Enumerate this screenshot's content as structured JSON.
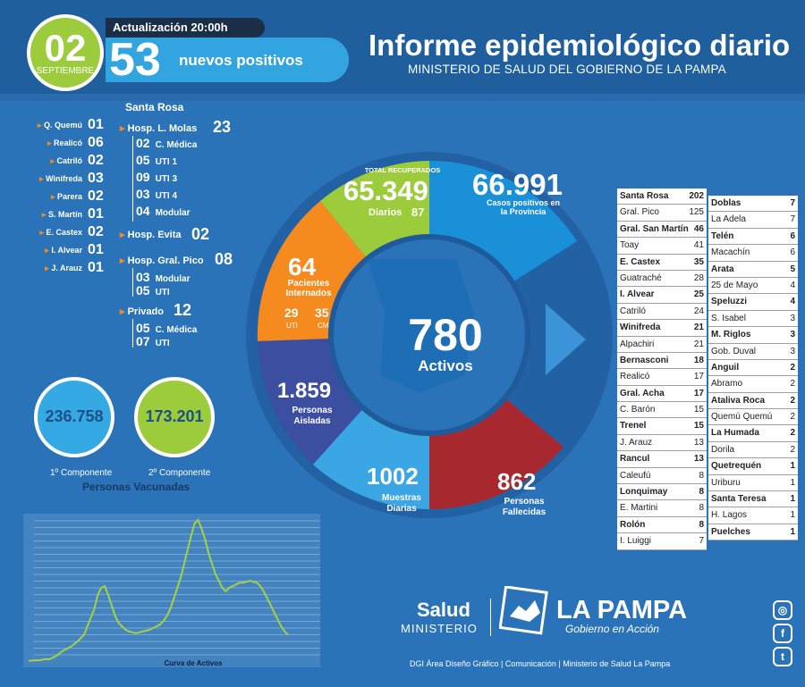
{
  "header": {
    "day": "02",
    "month": "SEPTIEMBRE",
    "update": "Actualización 20:00h",
    "new_positives": "53",
    "new_positives_label": "nuevos positivos",
    "title": "Informe epidemiológico diario",
    "subtitle": "MINISTERIO DE SALUD DEL GOBIERNO DE LA PAMPA"
  },
  "localities": [
    {
      "name": "Q. Quemú",
      "value": "01"
    },
    {
      "name": "Realicó",
      "value": "06"
    },
    {
      "name": "Catriló",
      "value": "02"
    },
    {
      "name": "Winifreda",
      "value": "03"
    },
    {
      "name": "Parera",
      "value": "02"
    },
    {
      "name": "S. Martín",
      "value": "01"
    },
    {
      "name": "E. Castex",
      "value": "02"
    },
    {
      "name": "I. Alvear",
      "value": "01"
    },
    {
      "name": "J. Arauz",
      "value": "01"
    }
  ],
  "santa_rosa": {
    "title": "Santa Rosa",
    "molas": {
      "name": "Hosp. L. Molas",
      "value": "23",
      "subs": [
        {
          "n": "02",
          "l": "C. Médica"
        },
        {
          "n": "05",
          "l": "UTI 1"
        },
        {
          "n": "09",
          "l": "UTI 3"
        },
        {
          "n": "03",
          "l": "UTI 4"
        },
        {
          "n": "04",
          "l": "Modular"
        }
      ]
    },
    "evita": {
      "name": "Hosp. Evita",
      "value": "02"
    },
    "pico": {
      "name": "Hosp. Gral. Pico",
      "value": "08",
      "subs": [
        {
          "n": "03",
          "l": "Modular"
        },
        {
          "n": "05",
          "l": "UTI"
        }
      ]
    },
    "privado": {
      "name": "Privado",
      "value": "12",
      "subs": [
        {
          "n": "05",
          "l": "C. Médica"
        },
        {
          "n": "07",
          "l": "UTI"
        }
      ]
    }
  },
  "wheel": {
    "recovered_label": "TOTAL RECUPERADOS",
    "recovered": "65.349",
    "daily_label": "Diarios",
    "daily": "87",
    "positive": "66.991",
    "positive_label": "Casos positivos en la Provincia",
    "interned": "64",
    "interned_label": "Pacientes Internados",
    "uti": "29",
    "uti_label": "UTI",
    "cm": "35",
    "cm_label": "CM",
    "active": "780",
    "active_label": "Activos",
    "isolated": "1.859",
    "isolated_label": "Personas Aisladas",
    "samples": "1002",
    "samples_label": "Muestras Diarias",
    "deceased": "862",
    "deceased_label": "Personas Fallecidas"
  },
  "vaccination": {
    "first": "236.758",
    "first_label": "1º Componente",
    "second": "173.201",
    "second_label": "2º Componente",
    "title": "Personas Vacunadas"
  },
  "table_left": [
    {
      "n": "Santa Rosa",
      "v": "202",
      "b": true
    },
    {
      "n": "Gral. Pico",
      "v": "125",
      "b": false
    },
    {
      "n": "Gral. San Martín",
      "v": "46",
      "b": true
    },
    {
      "n": "Toay",
      "v": "41",
      "b": false
    },
    {
      "n": "E. Castex",
      "v": "35",
      "b": true
    },
    {
      "n": "Guatraché",
      "v": "28",
      "b": false
    },
    {
      "n": "I. Alvear",
      "v": "25",
      "b": true
    },
    {
      "n": "Catriló",
      "v": "24",
      "b": false
    },
    {
      "n": "Winifreda",
      "v": "21",
      "b": true
    },
    {
      "n": "Alpachiri",
      "v": "21",
      "b": false
    },
    {
      "n": "Bernasconi",
      "v": "18",
      "b": true
    },
    {
      "n": "Realicó",
      "v": "17",
      "b": false
    },
    {
      "n": "Gral. Acha",
      "v": "17",
      "b": true
    },
    {
      "n": "C. Barón",
      "v": "15",
      "b": false
    },
    {
      "n": "Trenel",
      "v": "15",
      "b": true
    },
    {
      "n": "J. Arauz",
      "v": "13",
      "b": false
    },
    {
      "n": "Rancul",
      "v": "13",
      "b": true
    },
    {
      "n": "Caleufú",
      "v": "8",
      "b": false
    },
    {
      "n": "Lonquimay",
      "v": "8",
      "b": true
    },
    {
      "n": "E. Martini",
      "v": "8",
      "b": false
    },
    {
      "n": "Rolón",
      "v": "8",
      "b": true
    },
    {
      "n": "I. Luiggi",
      "v": "7",
      "b": false
    }
  ],
  "table_right": [
    {
      "n": "Doblas",
      "v": "7",
      "b": true
    },
    {
      "n": "La Adela",
      "v": "7",
      "b": false
    },
    {
      "n": "Telén",
      "v": "6",
      "b": true
    },
    {
      "n": "Macachín",
      "v": "6",
      "b": false
    },
    {
      "n": "Arata",
      "v": "5",
      "b": true
    },
    {
      "n": "25 de Mayo",
      "v": "4",
      "b": false
    },
    {
      "n": "Speluzzi",
      "v": "4",
      "b": true
    },
    {
      "n": "S. Isabel",
      "v": "3",
      "b": false
    },
    {
      "n": "M. Riglos",
      "v": "3",
      "b": true
    },
    {
      "n": "Gob. Duval",
      "v": "3",
      "b": false
    },
    {
      "n": "Anguil",
      "v": "2",
      "b": true
    },
    {
      "n": "Abramo",
      "v": "2",
      "b": false
    },
    {
      "n": "Ataliva Roca",
      "v": "2",
      "b": true
    },
    {
      "n": "Quemú Quemú",
      "v": "2",
      "b": false
    },
    {
      "n": "La Humada",
      "v": "2",
      "b": true
    },
    {
      "n": "Dorila",
      "v": "2",
      "b": false
    },
    {
      "n": "Quetrequén",
      "v": "1",
      "b": true
    },
    {
      "n": "Uriburu",
      "v": "1",
      "b": false
    },
    {
      "n": "Santa Teresa",
      "v": "1",
      "b": true
    },
    {
      "n": "H. Lagos",
      "v": "1",
      "b": false
    },
    {
      "n": "Puelches",
      "v": "1",
      "b": true
    }
  ],
  "chart_data": {
    "type": "line",
    "xlabel": "Curva de Activos",
    "series": [
      {
        "values": [
          2,
          3,
          5,
          4,
          8,
          12,
          10,
          20,
          30,
          45,
          60,
          70,
          80,
          95,
          110,
          130,
          150,
          200,
          250,
          300,
          380,
          420,
          430,
          380,
          320,
          260,
          220,
          200,
          180,
          170,
          165,
          160,
          165,
          170,
          175,
          180,
          190,
          200,
          210,
          230,
          260,
          300,
          360,
          420,
          480,
          560,
          640,
          720,
          790,
          810,
          760,
          700,
          620,
          560,
          500,
          460,
          420,
          400,
          420,
          430,
          440,
          450,
          450,
          455,
          460,
          455,
          450,
          430,
          400,
          360,
          320,
          280,
          240,
          200,
          170,
          150
        ]
      }
    ],
    "y_gridlines": 20
  },
  "footer": {
    "salud": "Salud",
    "ministerio": "MINISTERIO",
    "lapampa": "LA PAMPA",
    "gobierno": "Gobierno en Acción",
    "credits": "DGI Área Diseño Gráfico  | Comunicación | Ministerio de Salud La Pampa"
  },
  "social": [
    "instagram-icon",
    "facebook-icon",
    "twitter-icon"
  ]
}
